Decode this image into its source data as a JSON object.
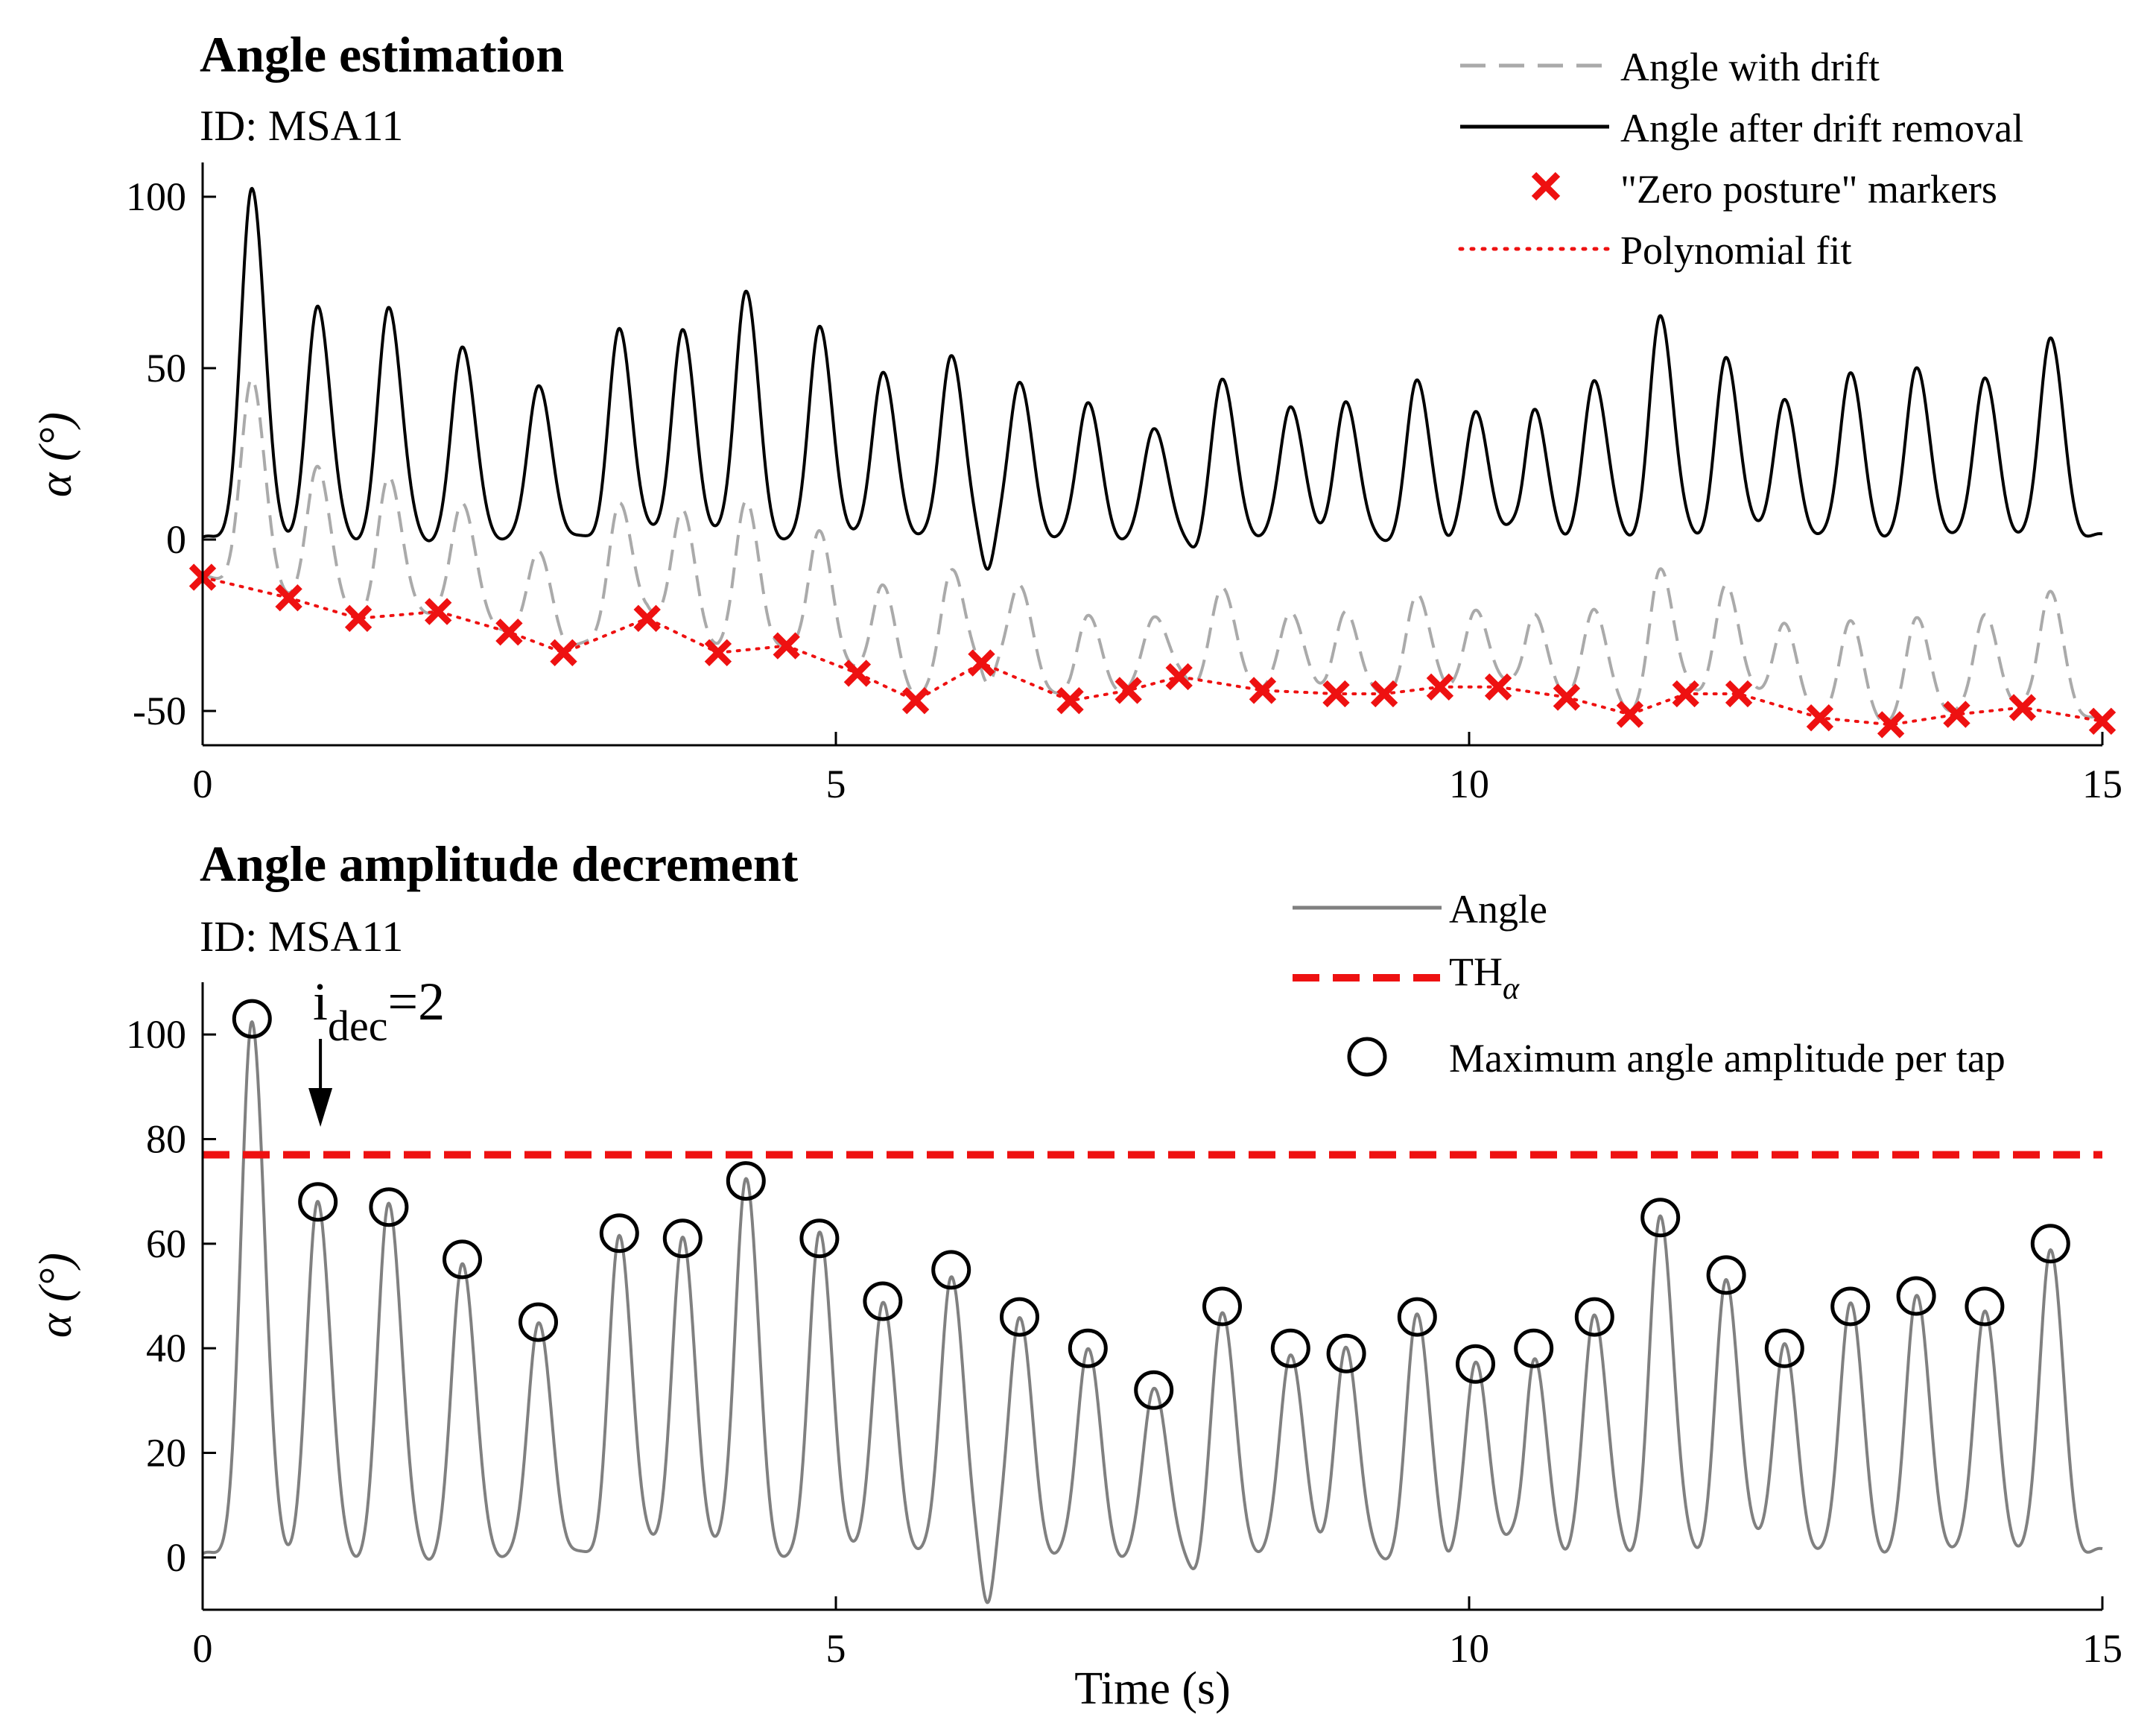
{
  "chart_data": [
    {
      "type": "line",
      "title": "Angle estimation",
      "subtitle": "ID: MSA11",
      "xlabel": "",
      "ylabel": "α (°)",
      "xlim": [
        0,
        15
      ],
      "ylim": [
        -60,
        110
      ],
      "xticks": [
        0,
        5,
        10,
        15
      ],
      "xtick_labels": [
        "0",
        "5",
        "10",
        "15"
      ],
      "yticks": [
        -50,
        0,
        50,
        100
      ],
      "ytick_labels": [
        "-50",
        "0",
        "50",
        "100"
      ],
      "legend_position": "top-right",
      "legend": [
        {
          "label": "Angle with drift",
          "style": "gray-dashed"
        },
        {
          "label": "Angle after drift removal",
          "style": "black-solid"
        },
        {
          "label": "\"Zero posture\" markers",
          "style": "red-x"
        },
        {
          "label": "Polynomial fit",
          "style": "red-dotted"
        }
      ],
      "peaks": [
        {
          "t": 0.39,
          "a": 103
        },
        {
          "t": 0.91,
          "a": 68
        },
        {
          "t": 1.47,
          "a": 67
        },
        {
          "t": 2.05,
          "a": 57
        },
        {
          "t": 2.65,
          "a": 45
        },
        {
          "t": 3.29,
          "a": 62
        },
        {
          "t": 3.79,
          "a": 61
        },
        {
          "t": 4.29,
          "a": 72
        },
        {
          "t": 4.87,
          "a": 61
        },
        {
          "t": 5.37,
          "a": 49
        },
        {
          "t": 5.91,
          "a": 55
        },
        {
          "t": 6.45,
          "a": 46
        },
        {
          "t": 6.99,
          "a": 40
        },
        {
          "t": 7.51,
          "a": 32
        },
        {
          "t": 8.05,
          "a": 48
        },
        {
          "t": 8.59,
          "a": 40
        },
        {
          "t": 9.03,
          "a": 39
        },
        {
          "t": 9.59,
          "a": 46
        },
        {
          "t": 10.05,
          "a": 37
        },
        {
          "t": 10.51,
          "a": 40
        },
        {
          "t": 10.99,
          "a": 46
        },
        {
          "t": 11.51,
          "a": 65
        },
        {
          "t": 12.03,
          "a": 54
        },
        {
          "t": 12.49,
          "a": 40
        },
        {
          "t": 13.01,
          "a": 48
        },
        {
          "t": 13.53,
          "a": 50
        },
        {
          "t": 14.07,
          "a": 48
        },
        {
          "t": 14.59,
          "a": 60
        }
      ],
      "zero_posture_markers": {
        "x": [
          0.0,
          0.68,
          1.23,
          1.86,
          2.42,
          2.85,
          3.51,
          4.07,
          4.61,
          5.17,
          5.63,
          6.15,
          6.85,
          7.31,
          7.71,
          8.37,
          8.95,
          9.33,
          9.77,
          10.23,
          10.77,
          11.27,
          11.71,
          12.13,
          12.77,
          13.33,
          13.85,
          14.37,
          15.0
        ],
        "y": [
          -11,
          -17,
          -23,
          -21,
          -27,
          -33,
          -23,
          -33,
          -31,
          -39,
          -47,
          -36,
          -47,
          -44,
          -40,
          -44,
          -45,
          -45,
          -43,
          -43,
          -46,
          -51,
          -45,
          -45,
          -52,
          -54,
          -51,
          -49,
          -53
        ]
      }
    },
    {
      "type": "line",
      "title": "Angle amplitude decrement",
      "subtitle": "ID: MSA11",
      "xlabel": "Time (s)",
      "ylabel": "α (°)",
      "xlim": [
        0,
        15
      ],
      "ylim": [
        -10,
        110
      ],
      "xticks": [
        0,
        5,
        10,
        15
      ],
      "xtick_labels": [
        "0",
        "5",
        "10",
        "15"
      ],
      "yticks": [
        0,
        20,
        40,
        60,
        80,
        100
      ],
      "ytick_labels": [
        "0",
        "20",
        "40",
        "60",
        "80",
        "100"
      ],
      "legend_position": "top-right",
      "legend": [
        {
          "label": "Angle",
          "style": "gray-solid"
        },
        {
          "label": "TH",
          "subscript": "α",
          "style": "red-dashed"
        },
        {
          "label": "Maximum angle amplitude per tap",
          "style": "black-circle"
        }
      ],
      "threshold": 77,
      "annotation": {
        "text": "i",
        "subscript": "dec",
        "suffix": "=2",
        "t": 0.93
      },
      "max_amplitude_circles": {
        "x": [
          0.39,
          0.91,
          1.47,
          2.05,
          2.65,
          3.29,
          3.79,
          4.29,
          4.87,
          5.37,
          5.91,
          6.45,
          6.99,
          7.51,
          8.05,
          8.59,
          9.03,
          9.59,
          10.05,
          10.51,
          10.99,
          11.51,
          12.03,
          12.49,
          13.01,
          13.53,
          14.07,
          14.59
        ],
        "y": [
          103,
          68,
          67,
          57,
          45,
          62,
          61,
          72,
          61,
          49,
          55,
          46,
          40,
          32,
          48,
          40,
          39,
          46,
          37,
          40,
          46,
          65,
          54,
          40,
          48,
          50,
          48,
          60
        ]
      }
    }
  ]
}
